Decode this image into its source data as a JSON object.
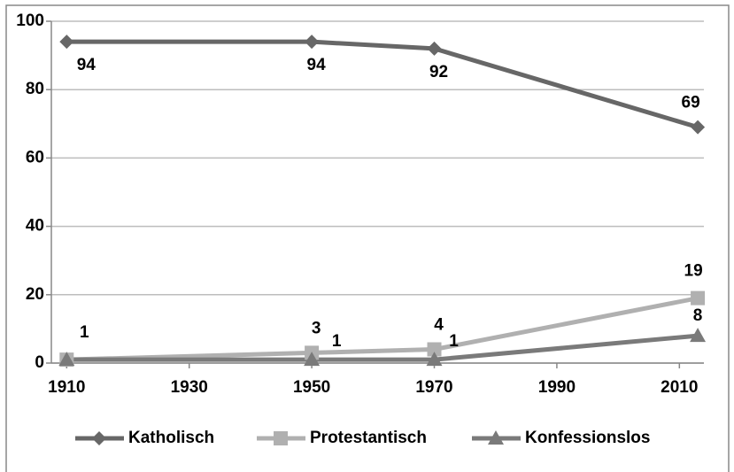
{
  "chart_data": {
    "type": "line",
    "x": [
      1910,
      1950,
      1970,
      2013
    ],
    "xlim": [
      1907.5,
      2014
    ],
    "xticks": [
      1910,
      1930,
      1950,
      1970,
      1990,
      2010
    ],
    "ylim": [
      0,
      100
    ],
    "yticks": [
      0,
      20,
      40,
      60,
      80,
      100
    ],
    "grid": true,
    "legend": "bottom",
    "series": [
      {
        "name": "Katholisch",
        "color": "#676767",
        "marker": "diamond",
        "values": [
          94,
          94,
          92,
          69
        ]
      },
      {
        "name": "Protestantisch",
        "color": "#b0b0b0",
        "marker": "square",
        "values": [
          1,
          3,
          4,
          19
        ]
      },
      {
        "name": "Konfessionslos",
        "color": "#7a7a7a",
        "marker": "triangle",
        "values": [
          1,
          1,
          1,
          8
        ],
        "value_labels": [
          null,
          "1",
          "1",
          "8"
        ]
      }
    ]
  }
}
